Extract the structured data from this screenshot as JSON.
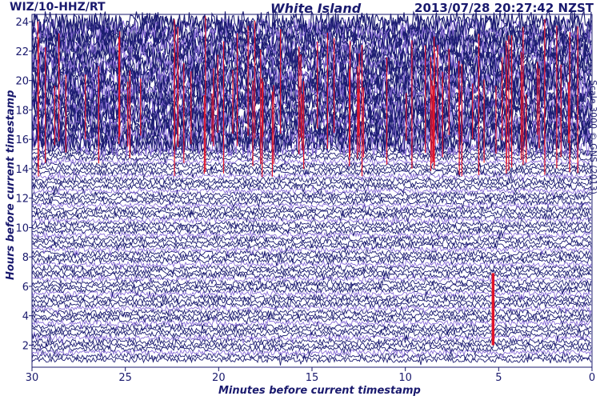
{
  "header": {
    "station": "WIZ/10-HHZ/RT",
    "location": "White Island",
    "timestamp": "2013/07/28 20:27:42 NZST"
  },
  "credit": "Scale 3000 © GNS (2013)",
  "colors": {
    "trace_dark": "#1c1c72",
    "trace_light": "#8b6fd8",
    "event_marker": "#e0142a",
    "axis_text": "#1a1a6e"
  },
  "chart_data": {
    "type": "line",
    "title": "White Island",
    "xlabel": "Minutes before current timestamp",
    "ylabel": "Hours before current timestamp",
    "x_range": [
      30,
      0
    ],
    "y_range": [
      0.5,
      24.5
    ],
    "x_ticks": [
      "30",
      "25",
      "20",
      "15",
      "10",
      "5",
      "0"
    ],
    "y_ticks": [
      "24",
      "22",
      "20",
      "18",
      "16",
      "14",
      "12",
      "10",
      "8",
      "6",
      "4",
      "2"
    ],
    "grid": false,
    "legend": "none",
    "series": [
      {
        "name": "",
        "description_level": "low amplitude",
        "hours": [
          1,
          15
        ]
      },
      {
        "name": "",
        "description_level": "high amplitude, saturated",
        "hours": [
          15.5,
          24
        ]
      }
    ],
    "events": [
      {
        "minutes_before": 5.3,
        "hours_from": 2,
        "hours_to": 6.9
      }
    ]
  }
}
